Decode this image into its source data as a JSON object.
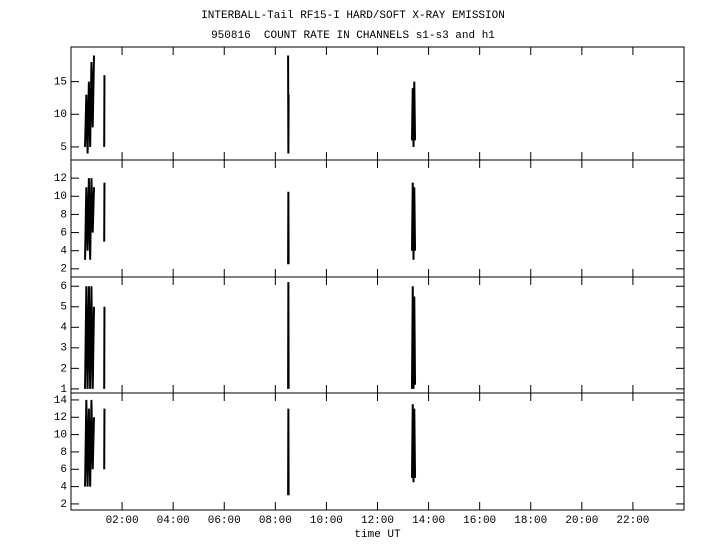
{
  "title": "INTERBALL-Tail RF15-I HARD/SOFT X-RAY EMISSION",
  "subtitle": "950816  COUNT RATE IN CHANNELS s1-s3 and h1",
  "chart_data": [
    {
      "type": "line",
      "color": "#000000",
      "xlim": [
        0,
        24
      ],
      "ylim": [
        3,
        20.3
      ],
      "yticks": [
        5,
        10,
        15
      ],
      "x": [
        0.55,
        0.6,
        0.65,
        0.7,
        0.75,
        0.8,
        0.85,
        0.9,
        1.0,
        1.3,
        1.31,
        5,
        8.5,
        8.51,
        8.52,
        11,
        13.35,
        13.38,
        13.41,
        13.44,
        13.47
      ],
      "values": [
        5,
        13,
        4,
        15,
        5,
        18,
        8,
        19,
        null,
        5,
        16,
        null,
        19,
        4,
        13,
        null,
        6,
        14,
        5,
        15,
        6
      ]
    },
    {
      "type": "line",
      "color": "#000000",
      "xlim": [
        0,
        24
      ],
      "ylim": [
        1.1,
        14
      ],
      "yticks": [
        2,
        4,
        6,
        8,
        10,
        12
      ],
      "x": [
        0.55,
        0.6,
        0.65,
        0.7,
        0.75,
        0.8,
        0.85,
        0.9,
        1.0,
        1.3,
        1.31,
        5,
        8.5,
        8.51,
        8.52,
        11,
        13.35,
        13.38,
        13.41,
        13.44,
        13.47
      ],
      "values": [
        3,
        11,
        4,
        12,
        3,
        12,
        6,
        11,
        null,
        5,
        11.5,
        null,
        2.5,
        10.5,
        2.5,
        null,
        4,
        11.5,
        3,
        11,
        4
      ]
    },
    {
      "type": "line",
      "color": "#000000",
      "xlim": [
        0,
        24
      ],
      "ylim": [
        0.8,
        6.45
      ],
      "yticks": [
        1,
        2,
        3,
        4,
        5,
        6
      ],
      "x": [
        0.55,
        0.6,
        0.65,
        0.7,
        0.75,
        0.8,
        0.85,
        0.9,
        1.0,
        1.3,
        1.31,
        5,
        8.5,
        8.51,
        8.52,
        11,
        13.35,
        13.38,
        13.41,
        13.44,
        13.47
      ],
      "values": [
        1,
        6,
        1,
        6,
        1,
        6,
        1,
        5,
        null,
        1,
        5,
        null,
        1,
        6.2,
        1,
        null,
        1,
        6,
        1,
        5.5,
        1.2
      ]
    },
    {
      "type": "line",
      "color": "#000000",
      "xlim": [
        0,
        24
      ],
      "ylim": [
        1.3,
        14.8
      ],
      "yticks": [
        2,
        4,
        6,
        8,
        10,
        12,
        14
      ],
      "xlabel": "time UT",
      "xticks": [
        {
          "value": 2,
          "label": "02:00"
        },
        {
          "value": 4,
          "label": "04:00"
        },
        {
          "value": 6,
          "label": "06:00"
        },
        {
          "value": 8,
          "label": "08:00"
        },
        {
          "value": 10,
          "label": "10:00"
        },
        {
          "value": 12,
          "label": "12:00"
        },
        {
          "value": 14,
          "label": "14:00"
        },
        {
          "value": 16,
          "label": "16:00"
        },
        {
          "value": 18,
          "label": "18:00"
        },
        {
          "value": 20,
          "label": "20:00"
        },
        {
          "value": 22,
          "label": "22:00"
        }
      ],
      "x": [
        0.55,
        0.6,
        0.65,
        0.7,
        0.75,
        0.8,
        0.85,
        0.9,
        1.0,
        1.3,
        1.31,
        5,
        8.5,
        8.51,
        8.52,
        11,
        13.35,
        13.38,
        13.41,
        13.44,
        13.47
      ],
      "values": [
        4,
        14,
        4,
        13,
        4,
        14,
        6,
        12,
        null,
        6,
        13,
        null,
        3,
        13,
        3,
        null,
        5,
        13.5,
        4.5,
        13,
        5
      ]
    }
  ]
}
